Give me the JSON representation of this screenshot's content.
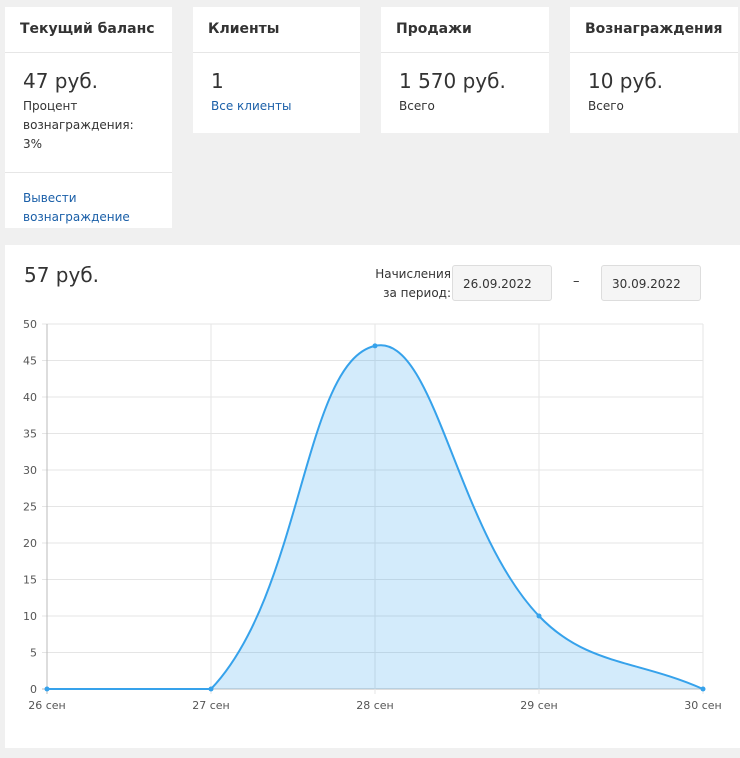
{
  "cards": [
    {
      "title": "Текущий баланс",
      "value": "47 руб.",
      "note": "Процент вознаграждения: 3%",
      "link": "Вывести вознаграждение"
    },
    {
      "title": "Клиенты",
      "value": "1",
      "link": "Все клиенты"
    },
    {
      "title": "Продажи",
      "value": "1 570 руб.",
      "note": "Всего"
    },
    {
      "title": "Вознаграждения",
      "value": "10 руб.",
      "note": "Всего"
    }
  ],
  "panel": {
    "total": "57 руб.",
    "period_label": "Начисления за период:",
    "date_from": "26.09.2022",
    "separator": "–",
    "date_to": "30.09.2022"
  },
  "chart_data": {
    "type": "line",
    "fill": true,
    "categories": [
      "26 сен",
      "27 сен",
      "28 сен",
      "29 сен",
      "30 сен"
    ],
    "series": [
      {
        "name": "Начисления",
        "color": "#36a2eb",
        "values": [
          0,
          0,
          47,
          10,
          0
        ]
      }
    ],
    "ylim": [
      0,
      50
    ],
    "yticks": [
      0,
      5,
      10,
      15,
      20,
      25,
      30,
      35,
      40,
      45,
      50
    ],
    "grid": true
  }
}
